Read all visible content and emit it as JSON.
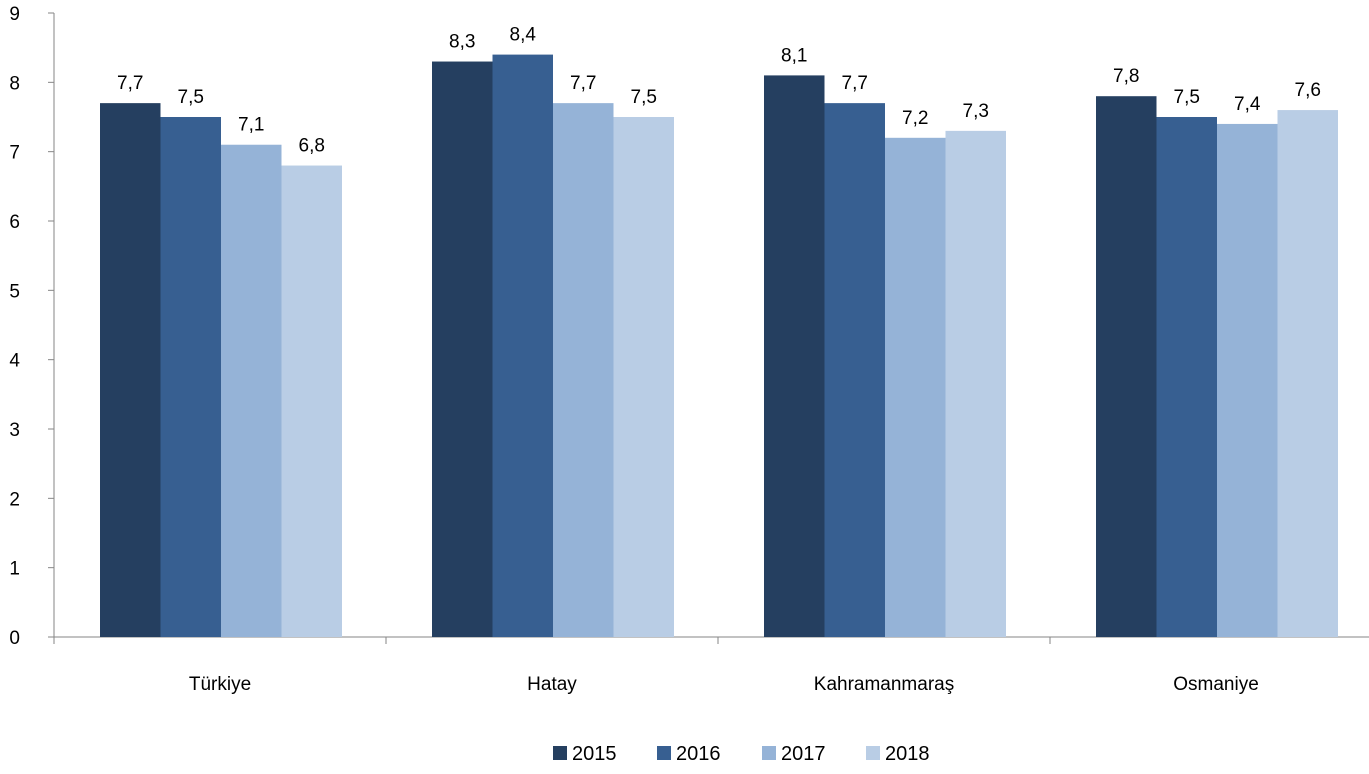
{
  "chart_data": {
    "type": "bar",
    "title": "",
    "xlabel": "",
    "ylabel": "",
    "ylim": [
      0,
      9
    ],
    "yticks": [
      0,
      1,
      2,
      3,
      4,
      5,
      6,
      7,
      8,
      9
    ],
    "grid": false,
    "legend_position": "bottom",
    "decimal_separator": ",",
    "categories": [
      "Türkiye",
      "Hatay",
      "Kahramanmaraş",
      "Osmaniye"
    ],
    "series": [
      {
        "name": "2015",
        "color": "#253f60",
        "values": [
          7.7,
          8.3,
          8.1,
          7.8
        ]
      },
      {
        "name": "2016",
        "color": "#375f91",
        "values": [
          7.5,
          8.4,
          7.7,
          7.5
        ]
      },
      {
        "name": "2017",
        "color": "#95b3d7",
        "values": [
          7.1,
          7.7,
          7.2,
          7.4
        ]
      },
      {
        "name": "2018",
        "color": "#b9cde5",
        "values": [
          6.8,
          7.5,
          7.3,
          7.6
        ]
      }
    ]
  }
}
